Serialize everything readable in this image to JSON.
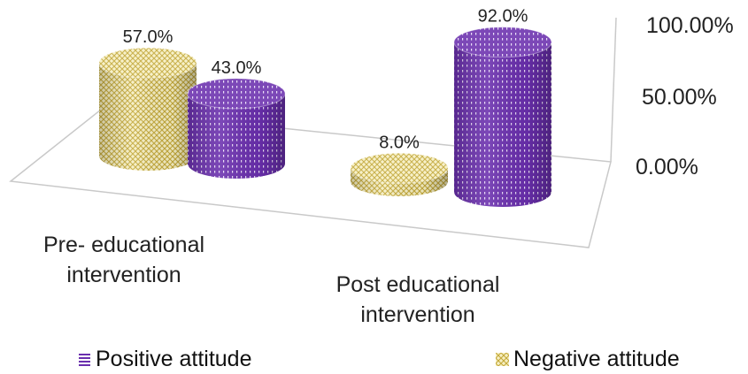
{
  "chart_data": {
    "type": "bar",
    "style": "3d-cylinder",
    "categories": [
      "Pre- educational intervention",
      "Post educational intervention"
    ],
    "category_lines": [
      [
        "Pre- educational",
        "intervention"
      ],
      [
        "Post educational",
        "intervention"
      ]
    ],
    "series": [
      {
        "name": "Negative attitude",
        "values": [
          57.0,
          8.0
        ],
        "labels": [
          "57.0%",
          "8.0%"
        ],
        "color": "#e8d66a",
        "pattern": "crosshatch"
      },
      {
        "name": "Positive attitude",
        "values": [
          43.0,
          92.0
        ],
        "labels": [
          "43.0%",
          "92.0%"
        ],
        "color": "#6a2fae",
        "pattern": "dotted"
      }
    ],
    "y_ticks": [
      "100.00%",
      "50.00%",
      "0.00%"
    ],
    "ylim": [
      0,
      100
    ],
    "legend_position": "bottom",
    "grid": false
  },
  "legend": {
    "positive_label": "Positive attitude",
    "negative_label": "Negative attitude"
  }
}
